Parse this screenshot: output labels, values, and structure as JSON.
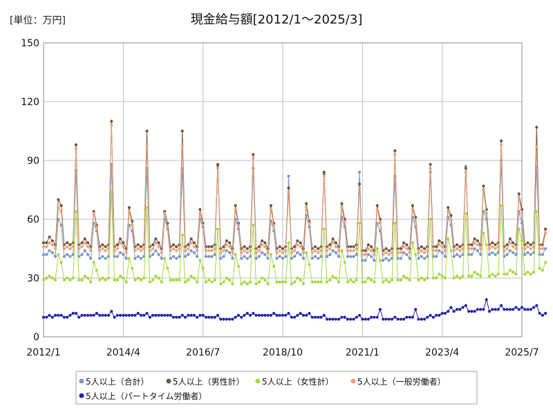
{
  "chart_data": {
    "type": "line",
    "title": "現金給与額[2012/1〜2025/3]",
    "unit_label": "[単位：万円]",
    "xlabel": "",
    "ylabel": "",
    "x_start": "2012/1",
    "x_end": "2025/7",
    "x_ticks": [
      "2012/1",
      "2014/4",
      "2016/7",
      "2018/10",
      "2021/1",
      "2023/4",
      "2025/7"
    ],
    "ylim": [
      0,
      150
    ],
    "y_ticks": [
      "0",
      "30",
      "60",
      "90",
      "120",
      "150"
    ],
    "grid": true,
    "legend_position": "bottom",
    "series": [
      {
        "name": "5人以上（合計）",
        "color": "#7b96c8",
        "values": [
          42,
          42,
          44,
          43,
          41,
          60,
          57,
          41,
          42,
          41,
          42,
          85,
          41,
          42,
          44,
          42,
          40,
          58,
          54,
          40,
          41,
          40,
          41,
          88,
          41,
          41,
          43,
          42,
          40,
          57,
          54,
          40,
          41,
          40,
          41,
          86,
          41,
          42,
          44,
          42,
          40,
          60,
          55,
          40,
          41,
          40,
          41,
          86,
          41,
          42,
          44,
          43,
          41,
          60,
          56,
          41,
          41,
          41,
          42,
          87,
          40,
          41,
          44,
          43,
          40,
          60,
          55,
          40,
          41,
          40,
          41,
          86,
          40,
          41,
          43,
          42,
          40,
          59,
          54,
          40,
          41,
          40,
          41,
          82,
          40,
          41,
          43,
          42,
          40,
          62,
          56,
          40,
          41,
          40,
          41,
          83,
          41,
          42,
          44,
          43,
          41,
          61,
          56,
          41,
          41,
          41,
          42,
          84,
          39,
          39,
          42,
          41,
          39,
          58,
          54,
          39,
          40,
          39,
          40,
          82,
          40,
          40,
          43,
          42,
          40,
          61,
          56,
          40,
          41,
          40,
          41,
          84,
          41,
          41,
          44,
          43,
          41,
          61,
          57,
          41,
          42,
          41,
          42,
          87,
          42,
          42,
          45,
          44,
          42,
          64,
          60,
          42,
          43,
          42,
          43,
          90,
          41,
          42,
          44,
          43,
          42,
          64,
          58,
          42,
          43,
          42,
          43,
          87,
          42,
          42,
          45
        ]
      },
      {
        "name": "5人以上（男性計）",
        "color": "#6b5848",
        "values": [
          48,
          48,
          51,
          49,
          47,
          70,
          67,
          47,
          48,
          47,
          48,
          98,
          47,
          48,
          50,
          48,
          46,
          64,
          57,
          46,
          47,
          46,
          47,
          110,
          46,
          47,
          50,
          48,
          45,
          66,
          59,
          46,
          47,
          46,
          47,
          105,
          46,
          47,
          50,
          48,
          45,
          64,
          58,
          46,
          47,
          46,
          47,
          105,
          46,
          47,
          50,
          48,
          46,
          65,
          58,
          46,
          46,
          46,
          47,
          88,
          45,
          46,
          49,
          48,
          45,
          67,
          58,
          45,
          46,
          45,
          46,
          93,
          45,
          46,
          49,
          48,
          45,
          67,
          58,
          45,
          46,
          45,
          46,
          76,
          45,
          46,
          49,
          48,
          45,
          68,
          59,
          45,
          46,
          45,
          46,
          84,
          46,
          47,
          50,
          48,
          46,
          68,
          60,
          46,
          46,
          46,
          47,
          78,
          44,
          44,
          47,
          46,
          44,
          67,
          60,
          44,
          45,
          44,
          45,
          95,
          45,
          45,
          48,
          47,
          45,
          67,
          61,
          45,
          46,
          45,
          46,
          88,
          46,
          46,
          49,
          48,
          46,
          66,
          62,
          46,
          47,
          46,
          47,
          86,
          47,
          47,
          50,
          49,
          47,
          77,
          65,
          47,
          48,
          47,
          48,
          100,
          46,
          47,
          50,
          48,
          47,
          73,
          65,
          47,
          48,
          47,
          48,
          107,
          47,
          47,
          55
        ]
      },
      {
        "name": "5人以上（女性計）",
        "color": "#a6d93a",
        "values": [
          29,
          30,
          31,
          30,
          29,
          42,
          38,
          29,
          30,
          29,
          30,
          64,
          29,
          29,
          31,
          30,
          28,
          38,
          34,
          29,
          30,
          29,
          30,
          74,
          29,
          29,
          31,
          30,
          28,
          40,
          35,
          29,
          30,
          29,
          30,
          66,
          28,
          29,
          31,
          30,
          28,
          40,
          35,
          29,
          29,
          29,
          29,
          52,
          28,
          29,
          31,
          30,
          28,
          39,
          35,
          28,
          29,
          28,
          29,
          55,
          27,
          28,
          30,
          29,
          27,
          42,
          36,
          27,
          28,
          27,
          28,
          57,
          27,
          28,
          30,
          29,
          27,
          42,
          36,
          28,
          28,
          28,
          28,
          48,
          27,
          28,
          30,
          29,
          27,
          43,
          37,
          28,
          28,
          28,
          28,
          55,
          28,
          29,
          31,
          30,
          28,
          44,
          38,
          28,
          29,
          28,
          29,
          58,
          28,
          28,
          30,
          29,
          28,
          45,
          39,
          28,
          29,
          28,
          29,
          58,
          29,
          29,
          31,
          30,
          29,
          48,
          42,
          29,
          30,
          29,
          30,
          60,
          30,
          30,
          32,
          31,
          30,
          50,
          44,
          30,
          31,
          30,
          31,
          63,
          31,
          31,
          33,
          32,
          31,
          53,
          47,
          31,
          32,
          31,
          32,
          67,
          32,
          32,
          34,
          33,
          32,
          55,
          49,
          32,
          33,
          32,
          33,
          64,
          35,
          34,
          38
        ]
      },
      {
        "name": "5人以上（一般労働者）",
        "color": "#f0a070",
        "values": [
          46,
          46,
          48,
          47,
          45,
          66,
          64,
          45,
          46,
          45,
          46,
          96,
          45,
          46,
          48,
          46,
          44,
          63,
          56,
          44,
          45,
          44,
          45,
          108,
          44,
          45,
          48,
          46,
          43,
          64,
          57,
          44,
          45,
          44,
          45,
          98,
          44,
          45,
          48,
          46,
          43,
          63,
          56,
          44,
          45,
          44,
          45,
          98,
          44,
          45,
          48,
          46,
          44,
          63,
          57,
          44,
          44,
          44,
          45,
          86,
          43,
          44,
          47,
          46,
          43,
          65,
          57,
          43,
          44,
          43,
          44,
          91,
          43,
          44,
          47,
          46,
          43,
          65,
          57,
          43,
          44,
          43,
          44,
          74,
          43,
          44,
          47,
          46,
          43,
          66,
          58,
          43,
          44,
          43,
          44,
          82,
          44,
          45,
          48,
          46,
          44,
          66,
          58,
          44,
          44,
          44,
          45,
          76,
          42,
          42,
          45,
          44,
          42,
          65,
          58,
          42,
          43,
          42,
          43,
          93,
          43,
          43,
          46,
          45,
          43,
          65,
          59,
          43,
          44,
          43,
          44,
          86,
          44,
          44,
          47,
          46,
          44,
          64,
          60,
          44,
          45,
          44,
          45,
          84,
          45,
          45,
          48,
          47,
          45,
          75,
          63,
          45,
          46,
          45,
          46,
          98,
          44,
          45,
          48,
          46,
          45,
          71,
          63,
          45,
          46,
          45,
          46,
          97,
          45,
          45,
          53
        ]
      },
      {
        "name": "5人以上（パートタイム労働者）",
        "color": "#2222aa",
        "values": [
          10,
          10,
          11,
          10,
          11,
          11,
          11,
          10,
          10,
          11,
          12,
          12,
          10,
          11,
          11,
          11,
          11,
          11,
          12,
          11,
          11,
          11,
          11,
          13,
          10,
          11,
          11,
          11,
          11,
          11,
          11,
          11,
          12,
          11,
          11,
          12,
          10,
          11,
          11,
          11,
          11,
          11,
          11,
          11,
          10,
          10,
          10,
          11,
          10,
          11,
          11,
          11,
          10,
          11,
          11,
          10,
          10,
          10,
          10,
          11,
          9,
          9,
          9,
          9,
          9,
          10,
          11,
          10,
          11,
          12,
          11,
          12,
          11,
          11,
          11,
          11,
          11,
          11,
          12,
          11,
          11,
          11,
          11,
          12,
          10,
          10,
          11,
          12,
          11,
          11,
          12,
          10,
          10,
          10,
          10,
          11,
          9,
          9,
          9,
          9,
          9,
          10,
          10,
          9,
          9,
          9,
          10,
          11,
          9,
          9,
          9,
          10,
          10,
          10,
          14,
          9,
          9,
          9,
          9,
          10,
          9,
          9,
          9,
          10,
          10,
          10,
          14,
          9,
          9,
          9,
          10,
          11,
          10,
          11,
          11,
          12,
          12,
          13,
          15,
          13,
          14,
          14,
          15,
          16,
          13,
          13,
          13,
          14,
          14,
          14,
          19,
          13,
          14,
          14,
          14,
          16,
          14,
          14,
          14,
          14,
          15,
          14,
          15,
          14,
          14,
          14,
          15,
          16,
          12,
          11,
          12
        ]
      }
    ]
  }
}
